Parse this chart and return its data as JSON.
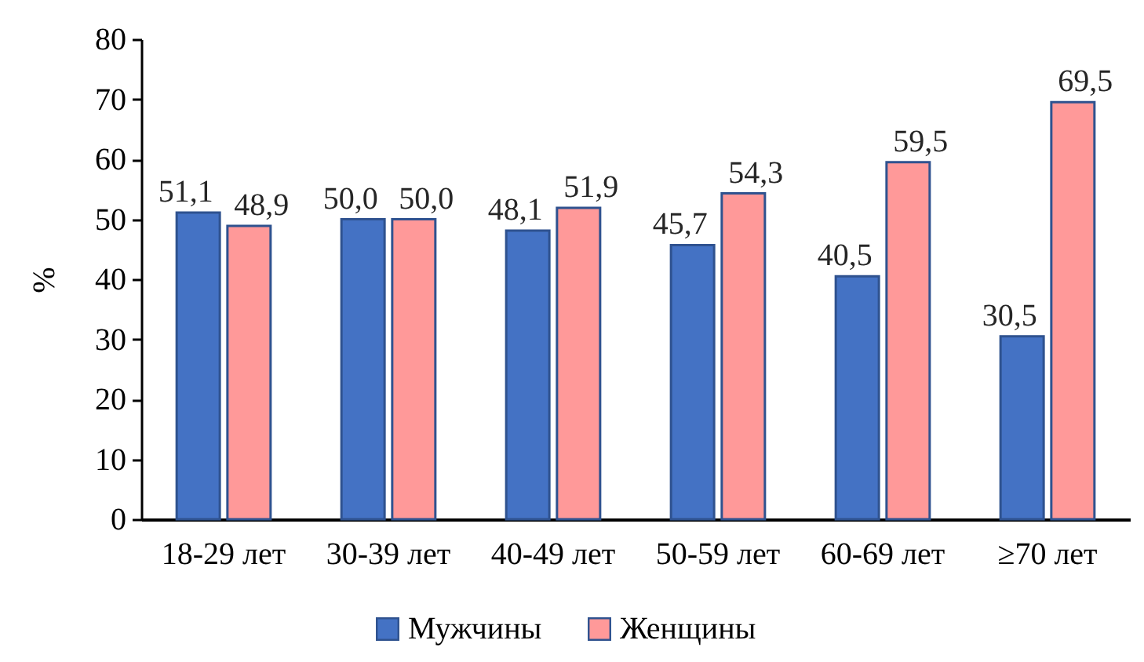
{
  "chart_data": {
    "type": "bar",
    "ylabel": "%",
    "categories": [
      "18-29 лет",
      "30-39 лет",
      "40-49 лет",
      "50-59 лет",
      "60-69 лет",
      "≥70 лет"
    ],
    "series": [
      {
        "name": "Мужчины",
        "color": "#4472c4",
        "values": [
          51.1,
          50.0,
          48.1,
          45.7,
          40.5,
          30.5
        ],
        "value_labels": [
          "51,1",
          "50,0",
          "48,1",
          "45,7",
          "40,5",
          "30,5"
        ]
      },
      {
        "name": "Женщины",
        "color": "#ff9999",
        "values": [
          48.9,
          50.0,
          51.9,
          54.3,
          59.5,
          69.5
        ],
        "value_labels": [
          "48,9",
          "50,0",
          "51,9",
          "54,3",
          "59,5",
          "69,5"
        ]
      }
    ],
    "ylim": [
      0,
      80
    ],
    "yticks": [
      0,
      10,
      20,
      30,
      40,
      50,
      60,
      70,
      80
    ],
    "legend": "bottom"
  }
}
